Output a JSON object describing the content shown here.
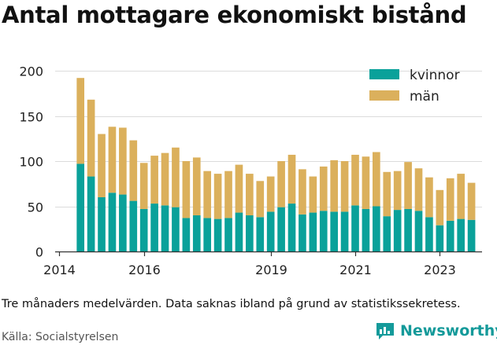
{
  "title": "Antal mottagare ekonomiskt bistånd",
  "note": "Tre månaders medelvärden. Data saknas ibland på grund av statistikssekretess.",
  "source": "Källa: Socialstyrelsen",
  "brand": {
    "name": "Newsworthy",
    "icon": "newsworthy-logo-icon",
    "color": "#149a9a"
  },
  "chart_data": {
    "type": "bar",
    "stacked": true,
    "x_start": 2014.5,
    "x_step": 0.25,
    "xlim": [
      2013.9,
      2024.0
    ],
    "xticks": [
      2014,
      2016,
      2019,
      2021,
      2023
    ],
    "ylim": [
      0,
      200
    ],
    "yticks": [
      0,
      50,
      100,
      150,
      200
    ],
    "grid": "y",
    "legend_position": "top-right",
    "series": [
      {
        "name": "kvinnor",
        "color": "#0aa19a",
        "values": [
          97,
          83,
          60,
          65,
          63,
          56,
          47,
          53,
          51,
          49,
          37,
          40,
          37,
          36,
          37,
          43,
          40,
          38,
          44,
          49,
          53,
          41,
          43,
          45,
          44,
          44,
          51,
          47,
          50,
          39,
          46,
          47,
          45,
          38,
          29,
          34,
          36,
          35
        ]
      },
      {
        "name": "män",
        "color": "#dbb05c",
        "values": [
          95,
          85,
          70,
          73,
          74,
          67,
          51,
          53,
          58,
          66,
          63,
          64,
          52,
          50,
          52,
          53,
          46,
          40,
          39,
          51,
          54,
          50,
          40,
          49,
          57,
          56,
          56,
          58,
          60,
          49,
          43,
          52,
          47,
          44,
          39,
          47,
          50,
          41
        ]
      }
    ]
  }
}
